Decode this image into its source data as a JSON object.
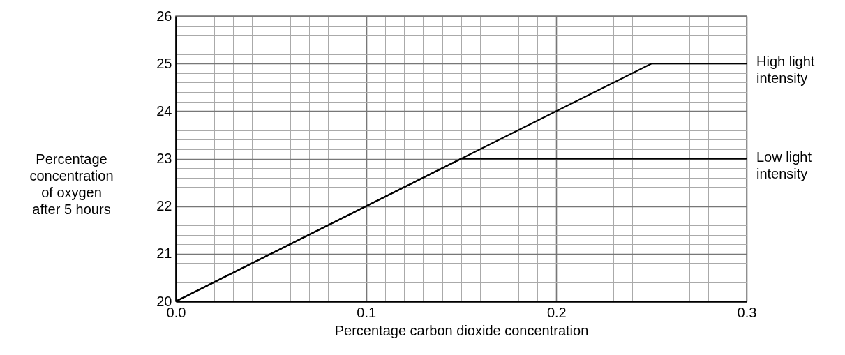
{
  "chart_data": {
    "type": "line",
    "xlabel": "Percentage carbon dioxide concentration",
    "ylabel": "Percentage concentration of oxygen after 5 hours",
    "xlim": [
      0,
      0.3
    ],
    "ylim": [
      20,
      26
    ],
    "xticks": [
      {
        "value": 0,
        "label": "0.0"
      },
      {
        "value": 0.01,
        "label": null
      },
      {
        "value": 0.02,
        "label": null
      },
      {
        "value": 0.03,
        "label": null
      },
      {
        "value": 0.04,
        "label": null
      },
      {
        "value": 0.05,
        "label": null
      },
      {
        "value": 0.06,
        "label": null
      },
      {
        "value": 0.07,
        "label": null
      },
      {
        "value": 0.08,
        "label": null
      },
      {
        "value": 0.09,
        "label": null
      },
      0.1,
      {
        "value": 0.11,
        "label": null
      },
      {
        "value": 0.12,
        "label": null
      },
      {
        "value": 0.13,
        "label": null
      },
      {
        "value": 0.14,
        "label": null
      },
      {
        "value": 0.15,
        "label": null
      },
      {
        "value": 0.16,
        "label": null
      },
      {
        "value": 0.17,
        "label": null
      },
      {
        "value": 0.18,
        "label": null
      },
      {
        "value": 0.19,
        "label": null
      },
      0.2,
      {
        "value": 0.21,
        "label": null
      },
      {
        "value": 0.22,
        "label": null
      },
      {
        "value": 0.23,
        "label": null
      },
      {
        "value": 0.24,
        "label": null
      },
      {
        "value": 0.25,
        "label": null
      },
      {
        "value": 0.26,
        "label": null
      },
      {
        "value": 0.27,
        "label": null
      },
      {
        "value": 0.28,
        "label": null
      },
      {
        "value": 0.29,
        "label": null
      },
      0.3
    ],
    "yticks": [
      20,
      {
        "value": 20.2,
        "label": null
      },
      {
        "value": 20.4,
        "label": null
      },
      {
        "value": 20.6,
        "label": null
      },
      {
        "value": 20.8,
        "label": null
      },
      21,
      {
        "value": 21.2,
        "label": null
      },
      {
        "value": 21.4,
        "label": null
      },
      {
        "value": 21.6,
        "label": null
      },
      {
        "value": 21.8,
        "label": null
      },
      22,
      {
        "value": 22.2,
        "label": null
      },
      {
        "value": 22.4,
        "label": null
      },
      {
        "value": 22.6,
        "label": null
      },
      {
        "value": 22.8,
        "label": null
      },
      23,
      {
        "value": 23.2,
        "label": null
      },
      {
        "value": 23.4,
        "label": null
      },
      {
        "value": 23.6,
        "label": null
      },
      {
        "value": 23.8,
        "label": null
      },
      24,
      {
        "value": 24.2,
        "label": null
      },
      {
        "value": 24.4,
        "label": null
      },
      {
        "value": 24.6,
        "label": null
      },
      {
        "value": 24.8,
        "label": null
      },
      25,
      {
        "value": 25.2,
        "label": null
      },
      {
        "value": 25.4,
        "label": null
      },
      {
        "value": 25.6,
        "label": null
      },
      {
        "value": 25.8,
        "label": null
      },
      26
    ],
    "grid": true,
    "marker": "none",
    "line_style": "solid",
    "series": [
      {
        "name": "High light intensity",
        "color": "#000000",
        "x": [
          0,
          0.25,
          0.3
        ],
        "values": [
          20,
          25,
          25
        ]
      },
      {
        "name": "Low light intensity",
        "color": "#000000",
        "x": [
          0,
          0.15,
          0.3
        ],
        "values": [
          20,
          23,
          23
        ]
      }
    ]
  }
}
